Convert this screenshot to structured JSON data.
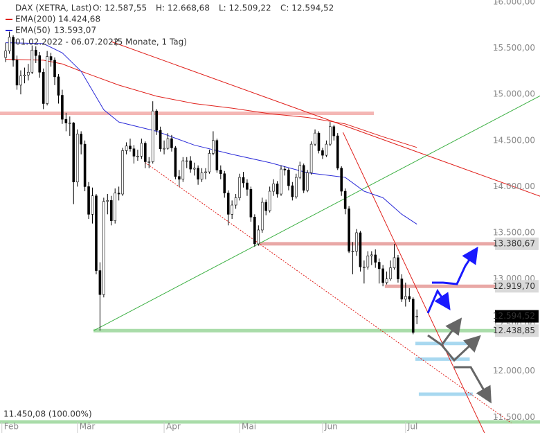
{
  "chart_data": {
    "type": "candlestick",
    "title": "DAX (XETRA, Last)",
    "ohlc_labels": [
      "O: 12.587,55",
      "H: 12.668,68",
      "L: 12.509,22",
      "C: 12.594,52"
    ],
    "period": "01.02.2022 - 06.07.2022",
    "period_note": "(5 Monate, 1 Tag)",
    "ylim": [
      11450,
      16000
    ],
    "xlim": [
      -1.5,
      129.7
    ],
    "yticks": [
      {
        "value": 11500,
        "label": "11.500,00"
      },
      {
        "value": 12000,
        "label": "12.000,00"
      },
      {
        "value": 12500,
        "label": "12.500,00"
      },
      {
        "value": 13000,
        "label": "13.000,00"
      },
      {
        "value": 13500,
        "label": "13.500,00"
      },
      {
        "value": 14000,
        "label": "14.000,00"
      },
      {
        "value": 14500,
        "label": "14.500,00"
      },
      {
        "value": 15000,
        "label": "15.000,00"
      },
      {
        "value": 15500,
        "label": "15.500,00"
      },
      {
        "value": 16000,
        "label": "16.000,00"
      }
    ],
    "xticks": [
      {
        "value": -1,
        "label": "Feb"
      },
      {
        "value": 19,
        "label": "Mär"
      },
      {
        "value": 42,
        "label": "Apr"
      },
      {
        "value": 62,
        "label": "Mai"
      },
      {
        "value": 84,
        "label": "Jun"
      },
      {
        "value": 106,
        "label": "Jul"
      }
    ],
    "candles": [
      [
        15400,
        15560,
        15350,
        15470
      ],
      [
        15470,
        15680,
        15440,
        15620
      ],
      [
        15620,
        15640,
        15300,
        15370
      ],
      [
        15370,
        15420,
        15050,
        15100
      ],
      [
        15100,
        15260,
        15000,
        15200
      ],
      [
        15200,
        15290,
        15120,
        15210
      ],
      [
        15210,
        15330,
        15150,
        15240
      ],
      [
        15240,
        15530,
        15220,
        15480
      ],
      [
        15480,
        15520,
        15340,
        15420
      ],
      [
        15420,
        15460,
        15180,
        15240
      ],
      [
        15240,
        15280,
        14840,
        14900
      ],
      [
        14900,
        15470,
        14880,
        15410
      ],
      [
        15410,
        15450,
        15300,
        15370
      ],
      [
        15370,
        15400,
        15100,
        15190
      ],
      [
        15190,
        15220,
        14900,
        14990
      ],
      [
        14990,
        15050,
        14680,
        14730
      ],
      [
        14730,
        14800,
        14600,
        14690
      ],
      [
        14690,
        14760,
        14550,
        14690
      ],
      [
        14690,
        14700,
        13810,
        14050
      ],
      [
        14050,
        14620,
        14000,
        14570
      ],
      [
        14570,
        14600,
        14350,
        14460
      ],
      [
        14460,
        14500,
        13950,
        14000
      ],
      [
        14000,
        14050,
        13650,
        13700
      ],
      [
        13700,
        13990,
        13600,
        13900
      ],
      [
        13900,
        13920,
        13050,
        13090
      ],
      [
        13090,
        13180,
        12438.85,
        12830
      ],
      [
        12830,
        13880,
        12800,
        13840
      ],
      [
        13840,
        13920,
        13700,
        13850
      ],
      [
        13850,
        13900,
        13580,
        13630
      ],
      [
        13630,
        13980,
        13600,
        13930
      ],
      [
        13930,
        14000,
        13850,
        13920
      ],
      [
        13920,
        14420,
        13900,
        14390
      ],
      [
        14390,
        14480,
        14350,
        14440
      ],
      [
        14440,
        14520,
        14380,
        14410
      ],
      [
        14410,
        14450,
        14250,
        14330
      ],
      [
        14330,
        14400,
        14280,
        14330
      ],
      [
        14330,
        14520,
        14300,
        14470
      ],
      [
        14470,
        14490,
        14200,
        14270
      ],
      [
        14270,
        14320,
        14200,
        14270
      ],
      [
        14270,
        14925,
        14250,
        14820
      ],
      [
        14820,
        14840,
        14560,
        14610
      ],
      [
        14610,
        14650,
        14380,
        14410
      ],
      [
        14410,
        14500,
        14350,
        14415
      ],
      [
        14415,
        14580,
        14400,
        14520
      ],
      [
        14520,
        14560,
        14380,
        14420
      ],
      [
        14420,
        14440,
        14080,
        14110
      ],
      [
        14110,
        14180,
        14000,
        14080
      ],
      [
        14080,
        14320,
        14050,
        14280
      ],
      [
        14280,
        14320,
        14200,
        14280
      ],
      [
        14280,
        14330,
        14150,
        14190
      ],
      [
        14190,
        14260,
        14120,
        14200
      ],
      [
        14200,
        14230,
        14020,
        14080
      ],
      [
        14080,
        14200,
        14050,
        14150
      ],
      [
        14150,
        14200,
        14080,
        14160
      ],
      [
        14160,
        14400,
        14140,
        14360
      ],
      [
        14360,
        14600,
        14340,
        14500
      ],
      [
        14500,
        14520,
        14150,
        14180
      ],
      [
        14180,
        14230,
        14080,
        14140
      ],
      [
        14140,
        14170,
        13880,
        13930
      ],
      [
        13930,
        13960,
        13580,
        13700
      ],
      [
        13700,
        13850,
        13650,
        13800
      ],
      [
        13800,
        13920,
        13760,
        13880
      ],
      [
        13880,
        14140,
        13850,
        14100
      ],
      [
        14100,
        14160,
        13990,
        14040
      ],
      [
        14040,
        14080,
        13900,
        13970
      ],
      [
        13970,
        14000,
        13620,
        13670
      ],
      [
        13670,
        13700,
        13350,
        13380
      ],
      [
        13380,
        13580,
        13360,
        13530
      ],
      [
        13530,
        13880,
        13500,
        13830
      ],
      [
        13830,
        13860,
        13690,
        13740
      ],
      [
        13740,
        14000,
        13720,
        13950
      ],
      [
        13950,
        14080,
        13900,
        14030
      ],
      [
        14030,
        14060,
        13880,
        13920
      ],
      [
        13920,
        14230,
        13900,
        14190
      ],
      [
        14190,
        14220,
        14120,
        14180
      ],
      [
        14180,
        14200,
        13960,
        14010
      ],
      [
        14010,
        14050,
        13850,
        13890
      ],
      [
        13890,
        14140,
        13870,
        14100
      ],
      [
        14100,
        14270,
        14080,
        14230
      ],
      [
        14230,
        14250,
        13930,
        13960
      ],
      [
        13960,
        14180,
        13940,
        14150
      ],
      [
        14150,
        14490,
        14130,
        14460
      ],
      [
        14460,
        14620,
        14440,
        14580
      ],
      [
        14580,
        14600,
        14360,
        14390
      ],
      [
        14390,
        14420,
        14300,
        14340
      ],
      [
        14340,
        14500,
        14320,
        14460
      ],
      [
        14460,
        14700,
        14440,
        14650
      ],
      [
        14650,
        14670,
        14500,
        14550
      ],
      [
        14550,
        14580,
        14180,
        14200
      ],
      [
        14200,
        14220,
        13900,
        13950
      ],
      [
        13950,
        13980,
        13700,
        13760
      ],
      [
        13760,
        13790,
        13280,
        13300
      ],
      [
        13300,
        13400,
        13050,
        13300
      ],
      [
        13300,
        13540,
        13250,
        13500
      ],
      [
        13500,
        13520,
        13080,
        13130
      ],
      [
        13130,
        13200,
        12950,
        13130
      ],
      [
        13130,
        13300,
        13100,
        13250
      ],
      [
        13250,
        13300,
        13150,
        13260
      ],
      [
        13260,
        13320,
        13120,
        13180
      ],
      [
        13180,
        13220,
        12950,
        13110
      ],
      [
        13110,
        13150,
        12920,
        12960
      ],
      [
        12960,
        13080,
        12940,
        13000
      ],
      [
        13000,
        13200,
        12980,
        13120
      ],
      [
        13120,
        13380,
        13100,
        13230
      ],
      [
        13230,
        13260,
        12960,
        13000
      ],
      [
        13000,
        13050,
        12750,
        12780
      ],
      [
        12780,
        12960,
        12700,
        12810
      ],
      [
        12810,
        12900,
        12750,
        12780
      ],
      [
        12780,
        12800,
        12400,
        12420
      ],
      [
        12587.55,
        12668.68,
        12509.22,
        12594.52
      ]
    ],
    "series": [
      {
        "name": "EMA(200)",
        "color": "#e0201b",
        "last_label": "14.424,68",
        "x": [
          0,
          10,
          15,
          20,
          30,
          40,
          50,
          60,
          70,
          80,
          90,
          100,
          109
        ],
        "values": [
          15380,
          15370,
          15330,
          15250,
          15100,
          14980,
          14900,
          14850,
          14790,
          14750,
          14680,
          14540,
          14424.68
        ]
      },
      {
        "name": "EMA(50)",
        "color": "#2b2bd8",
        "last_label": "13.593,07",
        "x": [
          0,
          10,
          15,
          20,
          26,
          30,
          40,
          50,
          60,
          70,
          80,
          90,
          95,
          100,
          105,
          109
        ],
        "values": [
          15560,
          15550,
          15450,
          15250,
          14833,
          14700,
          14600,
          14450,
          14350,
          14260,
          14150,
          14100,
          13950,
          13880,
          13700,
          13593.07
        ]
      }
    ],
    "trendlines": [
      {
        "color": "#e0201b",
        "style": "solid",
        "x": [
          27.9,
          141.7
        ],
        "values": [
          15573,
          13895
        ]
      },
      {
        "color": "#3cb043",
        "style": "solid",
        "x": [
          23.3,
          141.7
        ],
        "values": [
          12438.85,
          14985
        ]
      },
      {
        "color": "#e0201b",
        "style": "solid",
        "x": [
          89.4,
          127
        ],
        "values": [
          14589,
          11324
        ]
      },
      {
        "color": "#e0201b",
        "style": "dotted",
        "x": [
          37,
          134
        ],
        "values": [
          14261,
          11439
        ]
      }
    ],
    "zones": [
      {
        "value": 14795,
        "color": "#f4b6b4",
        "x": [
          -1.5,
          97.6
        ]
      },
      {
        "value": 13380.67,
        "color": "#e9a8a6",
        "x": [
          67,
          129.7
        ],
        "label": "13.380,67"
      },
      {
        "value": 12919.7,
        "color": "#e9a8a6",
        "x": [
          100.5,
          129.7
        ],
        "label": "12.919,70"
      },
      {
        "value": 12438.85,
        "color": "#a9dca9",
        "x": [
          23.3,
          129.7
        ],
        "label": "12.438,85"
      },
      {
        "value": 12300,
        "color": "#a8d8f0",
        "x": [
          108.6,
          123.3
        ]
      },
      {
        "value": 12130,
        "color": "#a8d8f0",
        "x": [
          108.6,
          123
        ]
      },
      {
        "value": 11750,
        "color": "#a8d8f0",
        "x": [
          109.5,
          123.8
        ]
      },
      {
        "value": 11450.08,
        "color": "#a9dca9",
        "x": [
          -1.5,
          141.7
        ],
        "text": "11.450,08 (100.00%)"
      }
    ],
    "last": {
      "value": 12594.52,
      "label": "12.594,52"
    }
  }
}
